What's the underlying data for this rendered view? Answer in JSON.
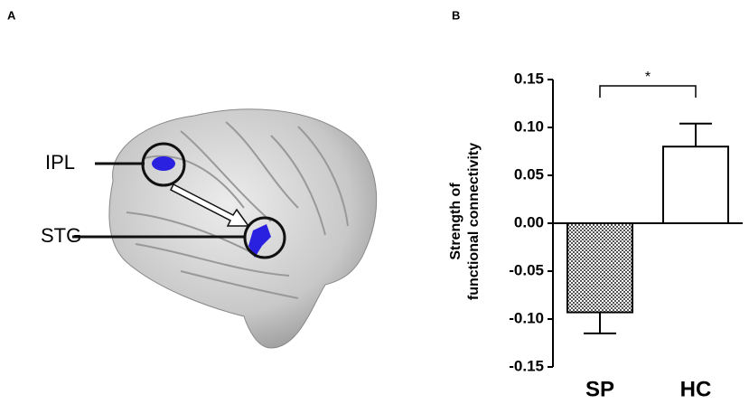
{
  "panel_labels": [
    "A",
    "B"
  ],
  "brain_labels": [
    "IPL",
    "STG"
  ],
  "chart_data": {
    "type": "bar",
    "y_label": [
      "Strength of",
      "functional connectivity"
    ],
    "categories": [
      "SP",
      "HC"
    ],
    "values": [
      -0.093,
      0.08
    ],
    "errors": [
      0.022,
      0.024
    ],
    "bar_styles": [
      "checker",
      "white"
    ],
    "ylim": [
      -0.15,
      0.15
    ],
    "yticks": [
      -0.15,
      {
        "value": -0.1,
        "label": "-0.10"
      },
      -0.05,
      {
        "value": 0,
        "label": "0.00"
      },
      0.05,
      {
        "value": 0.1,
        "label": "0.10"
      },
      0.15
    ],
    "significance": {
      "label": "*",
      "between": [
        0,
        1
      ]
    }
  }
}
